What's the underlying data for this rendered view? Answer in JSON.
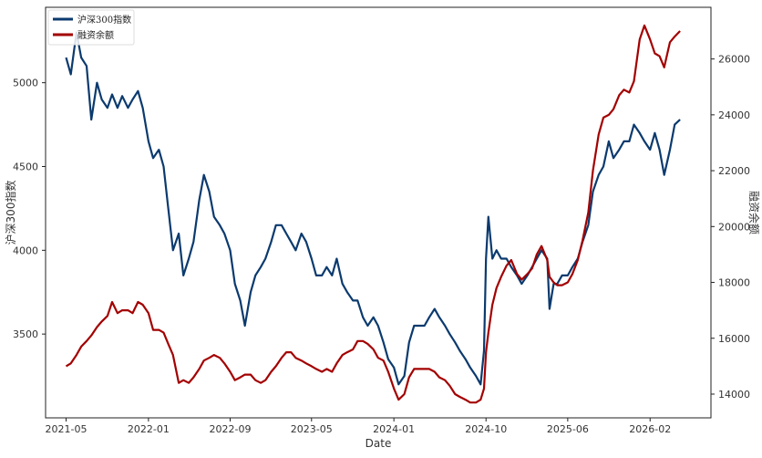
{
  "colors": {
    "index_series": "#0b3a6e",
    "margin_series": "#a30000",
    "frame": "#222222"
  },
  "chart_data": {
    "type": "line",
    "xlabel": "Date",
    "ylabel_left": "沪深300指数",
    "ylabel_right": "融资余额",
    "grid": false,
    "legend_position": "top-left",
    "x_ticks": [
      "2021-05",
      "2022-01",
      "2022-09",
      "2023-05",
      "2024-01",
      "2024-10",
      "2025-06",
      "2026-02"
    ],
    "xlim": [
      "2021-03",
      "2026-08"
    ],
    "left_ylim": [
      3000,
      5450
    ],
    "left_ticks": [
      3500,
      4000,
      4500,
      5000
    ],
    "right_ylim": [
      13150,
      27850
    ],
    "right_ticks": [
      14000,
      16000,
      18000,
      20000,
      22000,
      24000,
      26000
    ],
    "series": [
      {
        "name": "沪深300指数",
        "axis": "left",
        "points": [
          [
            "2021-05-01",
            5150
          ],
          [
            "2021-05-15",
            5050
          ],
          [
            "2021-06-01",
            5300
          ],
          [
            "2021-06-15",
            5150
          ],
          [
            "2021-07-01",
            5100
          ],
          [
            "2021-07-15",
            4780
          ],
          [
            "2021-08-01",
            5000
          ],
          [
            "2021-08-15",
            4900
          ],
          [
            "2021-09-01",
            4850
          ],
          [
            "2021-09-15",
            4930
          ],
          [
            "2021-10-01",
            4850
          ],
          [
            "2021-10-15",
            4920
          ],
          [
            "2021-11-01",
            4850
          ],
          [
            "2021-11-15",
            4900
          ],
          [
            "2021-12-01",
            4950
          ],
          [
            "2021-12-15",
            4850
          ],
          [
            "2022-01-01",
            4650
          ],
          [
            "2022-01-15",
            4550
          ],
          [
            "2022-02-01",
            4600
          ],
          [
            "2022-02-15",
            4500
          ],
          [
            "2022-03-01",
            4250
          ],
          [
            "2022-03-15",
            4000
          ],
          [
            "2022-04-01",
            4100
          ],
          [
            "2022-04-15",
            3850
          ],
          [
            "2022-05-01",
            3950
          ],
          [
            "2022-05-15",
            4050
          ],
          [
            "2022-06-01",
            4300
          ],
          [
            "2022-06-15",
            4450
          ],
          [
            "2022-07-01",
            4350
          ],
          [
            "2022-07-15",
            4200
          ],
          [
            "2022-08-01",
            4150
          ],
          [
            "2022-08-15",
            4100
          ],
          [
            "2022-09-01",
            4000
          ],
          [
            "2022-09-15",
            3800
          ],
          [
            "2022-10-01",
            3700
          ],
          [
            "2022-10-15",
            3550
          ],
          [
            "2022-11-01",
            3750
          ],
          [
            "2022-11-15",
            3850
          ],
          [
            "2022-12-01",
            3900
          ],
          [
            "2022-12-15",
            3950
          ],
          [
            "2023-01-01",
            4050
          ],
          [
            "2023-01-15",
            4150
          ],
          [
            "2023-02-01",
            4150
          ],
          [
            "2023-02-15",
            4100
          ],
          [
            "2023-03-01",
            4050
          ],
          [
            "2023-03-15",
            4000
          ],
          [
            "2023-04-01",
            4100
          ],
          [
            "2023-04-15",
            4050
          ],
          [
            "2023-05-01",
            3950
          ],
          [
            "2023-05-15",
            3850
          ],
          [
            "2023-06-01",
            3850
          ],
          [
            "2023-06-15",
            3900
          ],
          [
            "2023-07-01",
            3850
          ],
          [
            "2023-07-15",
            3950
          ],
          [
            "2023-08-01",
            3800
          ],
          [
            "2023-08-15",
            3750
          ],
          [
            "2023-09-01",
            3700
          ],
          [
            "2023-09-15",
            3700
          ],
          [
            "2023-10-01",
            3600
          ],
          [
            "2023-10-15",
            3550
          ],
          [
            "2023-11-01",
            3600
          ],
          [
            "2023-11-15",
            3550
          ],
          [
            "2023-12-01",
            3450
          ],
          [
            "2023-12-15",
            3350
          ],
          [
            "2024-01-01",
            3300
          ],
          [
            "2024-01-15",
            3200
          ],
          [
            "2024-02-01",
            3250
          ],
          [
            "2024-02-15",
            3450
          ],
          [
            "2024-03-01",
            3550
          ],
          [
            "2024-03-15",
            3550
          ],
          [
            "2024-04-01",
            3550
          ],
          [
            "2024-04-15",
            3600
          ],
          [
            "2024-05-01",
            3650
          ],
          [
            "2024-05-15",
            3600
          ],
          [
            "2024-06-01",
            3550
          ],
          [
            "2024-06-15",
            3500
          ],
          [
            "2024-07-01",
            3450
          ],
          [
            "2024-07-15",
            3400
          ],
          [
            "2024-08-01",
            3350
          ],
          [
            "2024-08-15",
            3300
          ],
          [
            "2024-09-01",
            3250
          ],
          [
            "2024-09-15",
            3200
          ],
          [
            "2024-09-25",
            3400
          ],
          [
            "2024-10-01",
            3950
          ],
          [
            "2024-10-08",
            4200
          ],
          [
            "2024-10-20",
            3950
          ],
          [
            "2024-11-01",
            4000
          ],
          [
            "2024-11-15",
            3950
          ],
          [
            "2024-12-01",
            3950
          ],
          [
            "2024-12-15",
            3900
          ],
          [
            "2025-01-01",
            3850
          ],
          [
            "2025-01-15",
            3800
          ],
          [
            "2025-02-01",
            3850
          ],
          [
            "2025-02-15",
            3900
          ],
          [
            "2025-03-01",
            3950
          ],
          [
            "2025-03-15",
            4000
          ],
          [
            "2025-04-01",
            3950
          ],
          [
            "2025-04-08",
            3650
          ],
          [
            "2025-04-20",
            3800
          ],
          [
            "2025-05-01",
            3800
          ],
          [
            "2025-05-15",
            3850
          ],
          [
            "2025-06-01",
            3850
          ],
          [
            "2025-06-15",
            3900
          ],
          [
            "2025-07-01",
            3950
          ],
          [
            "2025-07-15",
            4050
          ],
          [
            "2025-08-01",
            4150
          ],
          [
            "2025-08-15",
            4350
          ],
          [
            "2025-09-01",
            4450
          ],
          [
            "2025-09-15",
            4500
          ],
          [
            "2025-10-01",
            4650
          ],
          [
            "2025-10-15",
            4550
          ],
          [
            "2025-11-01",
            4600
          ],
          [
            "2025-11-15",
            4650
          ],
          [
            "2025-12-01",
            4650
          ],
          [
            "2025-12-15",
            4750
          ],
          [
            "2026-01-01",
            4700
          ],
          [
            "2026-01-15",
            4650
          ],
          [
            "2026-02-01",
            4600
          ],
          [
            "2026-02-15",
            4700
          ],
          [
            "2026-03-01",
            4600
          ],
          [
            "2026-03-15",
            4450
          ],
          [
            "2026-04-01",
            4600
          ],
          [
            "2026-04-15",
            4750
          ],
          [
            "2026-05-01",
            4780
          ]
        ]
      },
      {
        "name": "融资余额",
        "axis": "right",
        "points": [
          [
            "2021-05-01",
            15000
          ],
          [
            "2021-05-15",
            15100
          ],
          [
            "2021-06-01",
            15400
          ],
          [
            "2021-06-15",
            15700
          ],
          [
            "2021-07-01",
            15900
          ],
          [
            "2021-07-15",
            16100
          ],
          [
            "2021-08-01",
            16400
          ],
          [
            "2021-08-15",
            16600
          ],
          [
            "2021-09-01",
            16800
          ],
          [
            "2021-09-15",
            17300
          ],
          [
            "2021-10-01",
            16900
          ],
          [
            "2021-10-15",
            17000
          ],
          [
            "2021-11-01",
            17000
          ],
          [
            "2021-11-15",
            16900
          ],
          [
            "2021-12-01",
            17300
          ],
          [
            "2021-12-15",
            17200
          ],
          [
            "2022-01-01",
            16900
          ],
          [
            "2022-01-15",
            16300
          ],
          [
            "2022-02-01",
            16300
          ],
          [
            "2022-02-15",
            16200
          ],
          [
            "2022-03-01",
            15800
          ],
          [
            "2022-03-15",
            15400
          ],
          [
            "2022-04-01",
            14400
          ],
          [
            "2022-04-15",
            14500
          ],
          [
            "2022-05-01",
            14400
          ],
          [
            "2022-05-15",
            14600
          ],
          [
            "2022-06-01",
            14900
          ],
          [
            "2022-06-15",
            15200
          ],
          [
            "2022-07-01",
            15300
          ],
          [
            "2022-07-15",
            15400
          ],
          [
            "2022-08-01",
            15300
          ],
          [
            "2022-08-15",
            15100
          ],
          [
            "2022-09-01",
            14800
          ],
          [
            "2022-09-15",
            14500
          ],
          [
            "2022-10-01",
            14600
          ],
          [
            "2022-10-15",
            14700
          ],
          [
            "2022-11-01",
            14700
          ],
          [
            "2022-11-15",
            14500
          ],
          [
            "2022-12-01",
            14400
          ],
          [
            "2022-12-15",
            14500
          ],
          [
            "2023-01-01",
            14800
          ],
          [
            "2023-01-15",
            15000
          ],
          [
            "2023-02-01",
            15300
          ],
          [
            "2023-02-15",
            15500
          ],
          [
            "2023-03-01",
            15500
          ],
          [
            "2023-03-15",
            15300
          ],
          [
            "2023-04-01",
            15200
          ],
          [
            "2023-04-15",
            15100
          ],
          [
            "2023-05-01",
            15000
          ],
          [
            "2023-05-15",
            14900
          ],
          [
            "2023-06-01",
            14800
          ],
          [
            "2023-06-15",
            14900
          ],
          [
            "2023-07-01",
            14800
          ],
          [
            "2023-07-15",
            15100
          ],
          [
            "2023-08-01",
            15400
          ],
          [
            "2023-08-15",
            15500
          ],
          [
            "2023-09-01",
            15600
          ],
          [
            "2023-09-15",
            15900
          ],
          [
            "2023-10-01",
            15900
          ],
          [
            "2023-10-15",
            15800
          ],
          [
            "2023-11-01",
            15600
          ],
          [
            "2023-11-15",
            15300
          ],
          [
            "2023-12-01",
            15200
          ],
          [
            "2023-12-15",
            14800
          ],
          [
            "2024-01-01",
            14200
          ],
          [
            "2024-01-15",
            13800
          ],
          [
            "2024-02-01",
            14000
          ],
          [
            "2024-02-15",
            14600
          ],
          [
            "2024-03-01",
            14900
          ],
          [
            "2024-03-15",
            14900
          ],
          [
            "2024-04-01",
            14900
          ],
          [
            "2024-04-15",
            14900
          ],
          [
            "2024-05-01",
            14800
          ],
          [
            "2024-05-15",
            14600
          ],
          [
            "2024-06-01",
            14500
          ],
          [
            "2024-06-15",
            14300
          ],
          [
            "2024-07-01",
            14000
          ],
          [
            "2024-07-15",
            13900
          ],
          [
            "2024-08-01",
            13800
          ],
          [
            "2024-08-15",
            13700
          ],
          [
            "2024-09-01",
            13700
          ],
          [
            "2024-09-15",
            13800
          ],
          [
            "2024-09-25",
            14200
          ],
          [
            "2024-10-01",
            15500
          ],
          [
            "2024-10-08",
            16200
          ],
          [
            "2024-10-20",
            17200
          ],
          [
            "2024-11-01",
            17800
          ],
          [
            "2024-11-15",
            18200
          ],
          [
            "2024-12-01",
            18600
          ],
          [
            "2024-12-15",
            18800
          ],
          [
            "2025-01-01",
            18300
          ],
          [
            "2025-01-15",
            18100
          ],
          [
            "2025-02-01",
            18300
          ],
          [
            "2025-02-15",
            18500
          ],
          [
            "2025-03-01",
            19000
          ],
          [
            "2025-03-15",
            19300
          ],
          [
            "2025-04-01",
            18800
          ],
          [
            "2025-04-08",
            18200
          ],
          [
            "2025-04-20",
            18000
          ],
          [
            "2025-05-01",
            17900
          ],
          [
            "2025-05-15",
            17900
          ],
          [
            "2025-06-01",
            18000
          ],
          [
            "2025-06-15",
            18300
          ],
          [
            "2025-07-01",
            18800
          ],
          [
            "2025-07-15",
            19500
          ],
          [
            "2025-08-01",
            20500
          ],
          [
            "2025-08-15",
            22000
          ],
          [
            "2025-09-01",
            23300
          ],
          [
            "2025-09-15",
            23900
          ],
          [
            "2025-10-01",
            24000
          ],
          [
            "2025-10-15",
            24200
          ],
          [
            "2025-11-01",
            24700
          ],
          [
            "2025-11-15",
            24900
          ],
          [
            "2025-12-01",
            24800
          ],
          [
            "2025-12-15",
            25200
          ],
          [
            "2026-01-01",
            26700
          ],
          [
            "2026-01-15",
            27200
          ],
          [
            "2026-02-01",
            26700
          ],
          [
            "2026-02-15",
            26200
          ],
          [
            "2026-03-01",
            26100
          ],
          [
            "2026-03-15",
            25700
          ],
          [
            "2026-04-01",
            26600
          ],
          [
            "2026-04-15",
            26800
          ],
          [
            "2026-05-01",
            27000
          ]
        ]
      }
    ]
  }
}
